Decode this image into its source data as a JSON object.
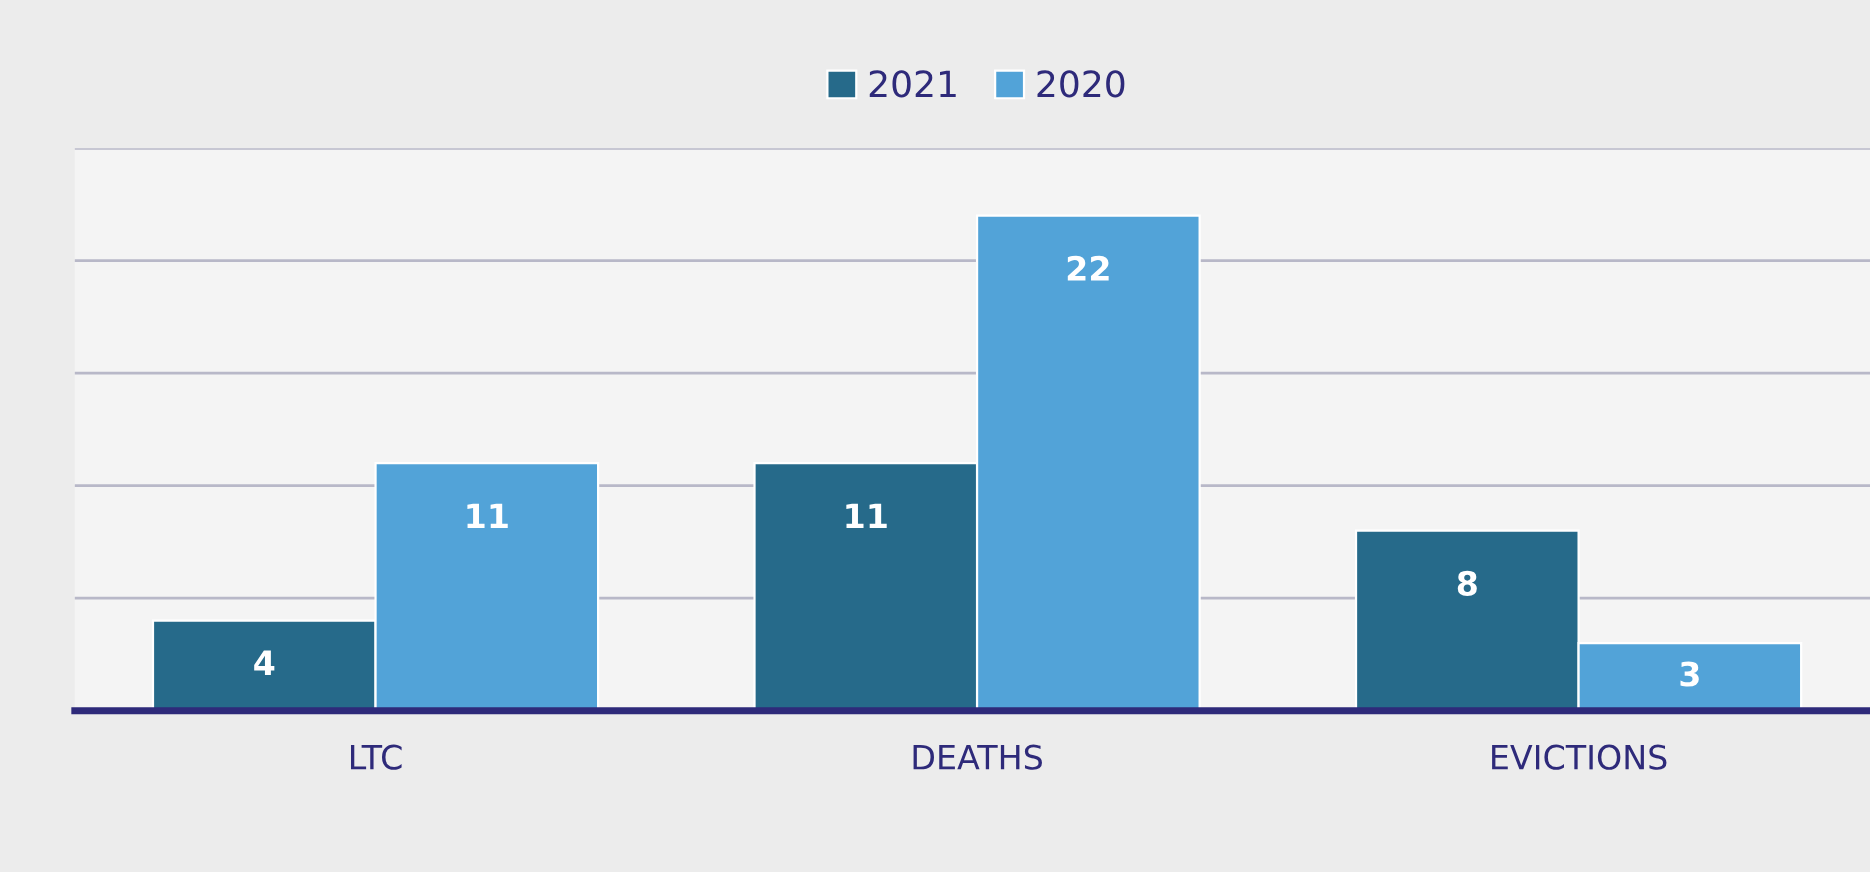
{
  "chart_data": {
    "type": "bar",
    "categories": [
      "LTC",
      "DEATHS",
      "EVICTIONS"
    ],
    "series": [
      {
        "name": "2021",
        "color": "#266a8a",
        "values": [
          4,
          11,
          8
        ]
      },
      {
        "name": "2020",
        "color": "#52a3d8",
        "values": [
          11,
          22,
          3
        ]
      }
    ],
    "ylim": [
      0,
      25
    ],
    "yticks": [
      {
        "value": 0,
        "label": null
      },
      {
        "value": 5,
        "label": null
      },
      {
        "value": 10,
        "label": null
      },
      {
        "value": 15,
        "label": null
      },
      {
        "value": 20,
        "label": null
      },
      {
        "value": 25,
        "label": null
      }
    ],
    "tick_labels": "x",
    "grid": "y",
    "legend": "top",
    "data_labels": true
  }
}
